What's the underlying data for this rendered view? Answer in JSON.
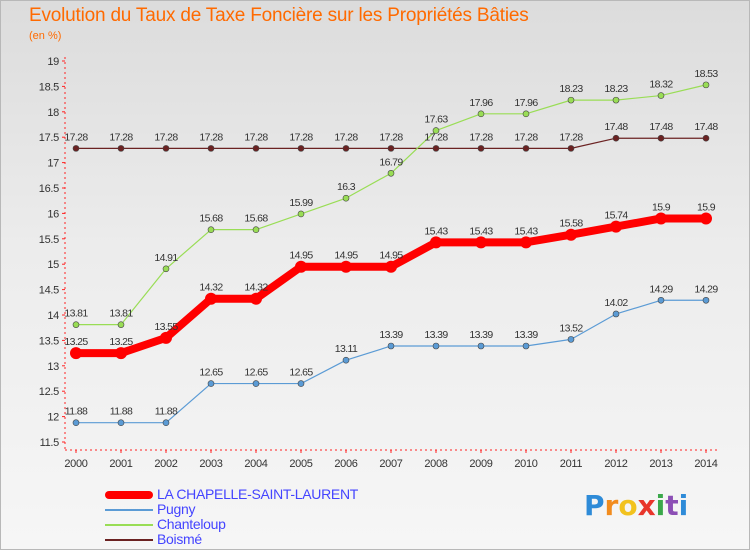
{
  "header": {
    "title": "Evolution du Taux de Taxe Foncière sur les Propriétés Bâties",
    "unit": "(en %)"
  },
  "chart_data": {
    "type": "line",
    "x": [
      "2000",
      "2001",
      "2002",
      "2003",
      "2004",
      "2005",
      "2006",
      "2007",
      "2008",
      "2009",
      "2010",
      "2011",
      "2012",
      "2013",
      "2014"
    ],
    "ylim": [
      11.5,
      19
    ],
    "yticks": [
      "11.5",
      "12",
      "12.5",
      "13",
      "13.5",
      "14",
      "14.5",
      "15",
      "15.5",
      "16",
      "16.5",
      "17",
      "17.5",
      "18",
      "18.5",
      "19"
    ],
    "grid": false,
    "legend_position": "bottom-left",
    "series": [
      {
        "name": "LA CHAPELLE-SAINT-LAURENT",
        "color": "#ff0000",
        "values": [
          13.25,
          13.25,
          13.55,
          14.32,
          14.32,
          14.95,
          14.95,
          14.95,
          15.43,
          15.43,
          15.43,
          15.58,
          15.74,
          15.9,
          15.9
        ],
        "labels": [
          "13.25",
          "13.25",
          "13.55",
          "14.32",
          "14.32",
          "14.95",
          "14.95",
          "14.95",
          "15.43",
          "15.43",
          "15.43",
          "15.58",
          "15.74",
          "15.9",
          "15.9"
        ]
      },
      {
        "name": "Pugny",
        "color": "#5b9bd5",
        "values": [
          11.88,
          11.88,
          11.88,
          12.65,
          12.65,
          12.65,
          13.11,
          13.39,
          13.39,
          13.39,
          13.39,
          13.52,
          14.02,
          14.29,
          14.29
        ],
        "labels": [
          "11.88",
          "11.88",
          "11.88",
          "12.65",
          "12.65",
          "12.65",
          "13.11",
          "13.39",
          "13.39",
          "13.39",
          "13.39",
          "13.52",
          "14.02",
          "14.29",
          "14.29"
        ]
      },
      {
        "name": "Chanteloup",
        "color": "#99dd55",
        "values": [
          13.81,
          13.81,
          14.91,
          15.68,
          15.68,
          15.99,
          16.3,
          16.79,
          17.63,
          17.96,
          17.96,
          18.23,
          18.23,
          18.32,
          18.53
        ],
        "labels": [
          "13.81",
          "13.81",
          "14.91",
          "15.68",
          "15.68",
          "15.99",
          "16.3",
          "16.79",
          "17.63",
          "17.96",
          "17.96",
          "18.23",
          "18.23",
          "18.32",
          "18.53"
        ]
      },
      {
        "name": "Boismé",
        "color": "#6b2222",
        "values": [
          17.28,
          17.28,
          17.28,
          17.28,
          17.28,
          17.28,
          17.28,
          17.28,
          17.28,
          17.28,
          17.28,
          17.28,
          17.48,
          17.48,
          17.48
        ],
        "labels": [
          "17.28",
          "17.28",
          "17.28",
          "17.28",
          "17.28",
          "17.28",
          "17.28",
          "17.28",
          "17.28",
          "17.28",
          "17.28",
          "17.28",
          "17.48",
          "17.48",
          "17.48"
        ]
      }
    ]
  },
  "logo": {
    "letters": [
      "P",
      "r",
      "o",
      "x",
      "i",
      "t",
      "i"
    ],
    "colors": [
      "#2e8bd8",
      "#f28c1e",
      "#f2c21e",
      "#e8352b",
      "#3aa84a",
      "#8c4fb5",
      "#2e8bd8"
    ]
  }
}
